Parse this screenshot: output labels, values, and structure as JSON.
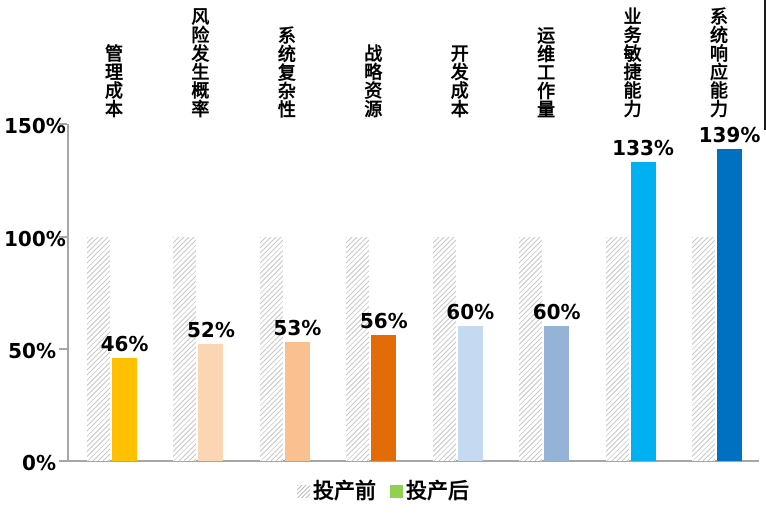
{
  "chart_data": {
    "type": "bar",
    "categories": [
      "管理成本",
      "风险发生概率",
      "系统复杂性",
      "战略资源",
      "开发成本",
      "运维工作量",
      "业务敏捷能力",
      "系统响应能力"
    ],
    "series": [
      {
        "name": "投产前",
        "values": [
          100,
          100,
          100,
          100,
          100,
          100,
          100,
          100
        ],
        "style": "hatched-gray"
      },
      {
        "name": "投产后",
        "values": [
          46,
          52,
          53,
          56,
          60,
          60,
          133,
          139
        ],
        "colors": [
          "#FFC000",
          "#FCD5B4",
          "#FAC090",
          "#E36C09",
          "#C5D9F1",
          "#95B3D7",
          "#00B0F0",
          "#0070C0"
        ]
      }
    ],
    "data_labels": [
      "46%",
      "52%",
      "53%",
      "56%",
      "60%",
      "60%",
      "133%",
      "139%"
    ],
    "title": "",
    "xlabel": "",
    "ylabel": "",
    "ytick_labels": [
      "150%",
      "100%",
      "50%",
      "0%"
    ],
    "ytick_values": [
      150,
      100,
      50,
      0
    ],
    "ylim": [
      0,
      150
    ],
    "grid": false,
    "legend_position": "bottom"
  },
  "legend": {
    "before_label": "投产前",
    "after_label": "投产后",
    "after_swatch_color": "#92D050",
    "before_swatch": "hatched-gray"
  },
  "colors": {
    "axis": "#A6A6A6",
    "hatch_line": "#C9C9C9",
    "text": "#000000"
  }
}
